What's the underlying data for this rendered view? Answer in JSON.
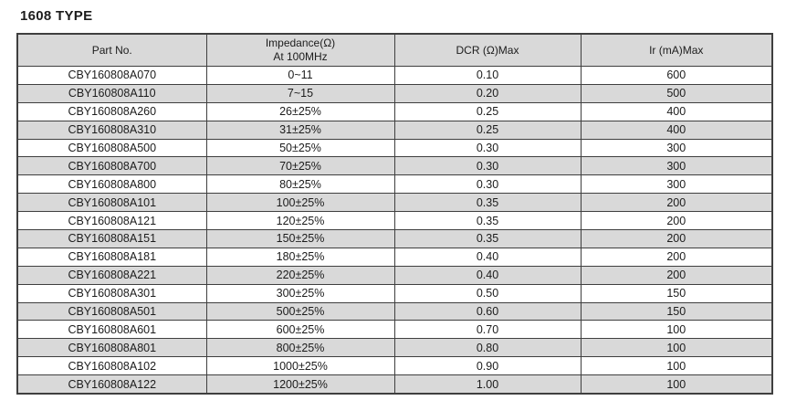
{
  "page": {
    "title": "1608 TYPE"
  },
  "table": {
    "columns": [
      {
        "id": "part_no",
        "label": "Part No.",
        "label_line2": ""
      },
      {
        "id": "impedance",
        "label": "Impedance(Ω)",
        "label_line2": "At 100MHz"
      },
      {
        "id": "dcr",
        "label": "DCR (Ω)Max",
        "label_line2": ""
      },
      {
        "id": "ir",
        "label": "Ir (mA)Max",
        "label_line2": ""
      }
    ],
    "rows": [
      {
        "part_no": "CBY160808A070",
        "impedance": "0~11",
        "dcr": "0.10",
        "ir": "600"
      },
      {
        "part_no": "CBY160808A110",
        "impedance": "7~15",
        "dcr": "0.20",
        "ir": "500"
      },
      {
        "part_no": "CBY160808A260",
        "impedance": "26±25%",
        "dcr": "0.25",
        "ir": "400"
      },
      {
        "part_no": "CBY160808A310",
        "impedance": "31±25%",
        "dcr": "0.25",
        "ir": "400"
      },
      {
        "part_no": "CBY160808A500",
        "impedance": "50±25%",
        "dcr": "0.30",
        "ir": "300"
      },
      {
        "part_no": "CBY160808A700",
        "impedance": "70±25%",
        "dcr": "0.30",
        "ir": "300"
      },
      {
        "part_no": "CBY160808A800",
        "impedance": "80±25%",
        "dcr": "0.30",
        "ir": "300"
      },
      {
        "part_no": "CBY160808A101",
        "impedance": "100±25%",
        "dcr": "0.35",
        "ir": "200"
      },
      {
        "part_no": "CBY160808A121",
        "impedance": "120±25%",
        "dcr": "0.35",
        "ir": "200"
      },
      {
        "part_no": "CBY160808A151",
        "impedance": "150±25%",
        "dcr": "0.35",
        "ir": "200"
      },
      {
        "part_no": "CBY160808A181",
        "impedance": "180±25%",
        "dcr": "0.40",
        "ir": "200"
      },
      {
        "part_no": "CBY160808A221",
        "impedance": "220±25%",
        "dcr": "0.40",
        "ir": "200"
      },
      {
        "part_no": "CBY160808A301",
        "impedance": "300±25%",
        "dcr": "0.50",
        "ir": "150"
      },
      {
        "part_no": "CBY160808A501",
        "impedance": "500±25%",
        "dcr": "0.60",
        "ir": "150"
      },
      {
        "part_no": "CBY160808A601",
        "impedance": "600±25%",
        "dcr": "0.70",
        "ir": "100"
      },
      {
        "part_no": "CBY160808A801",
        "impedance": "800±25%",
        "dcr": "0.80",
        "ir": "100"
      },
      {
        "part_no": "CBY160808A102",
        "impedance": "1000±25%",
        "dcr": "0.90",
        "ir": "100"
      },
      {
        "part_no": "CBY160808A122",
        "impedance": "1200±25%",
        "dcr": "1.00",
        "ir": "100"
      }
    ]
  },
  "colors": {
    "stripe_gray": "#d9d9d9",
    "header_bg": "#d9d9d9",
    "border": "#3f3f3f",
    "text": "#1c1c1c",
    "background": "#ffffff"
  }
}
